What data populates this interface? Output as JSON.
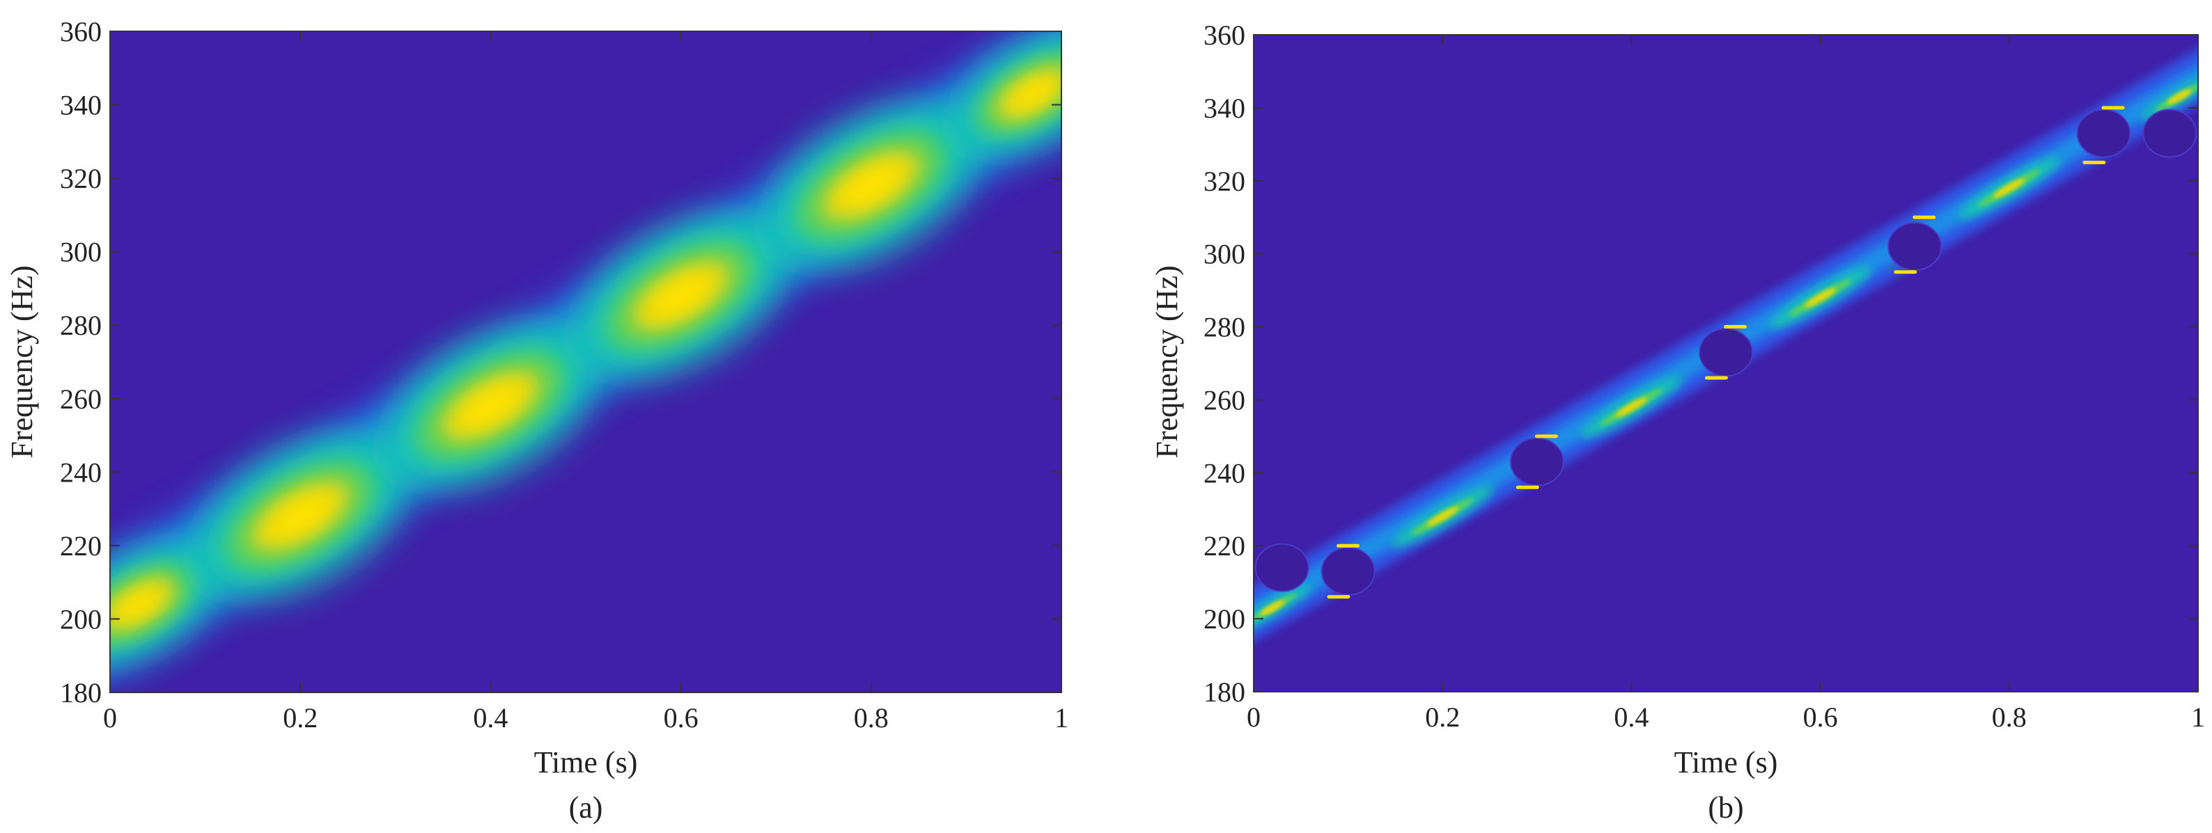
{
  "colors": {
    "background": "#4020a8",
    "axis": "#333333",
    "colormap": [
      "#4020a8",
      "#2f5ff0",
      "#16a6e8",
      "#16c8b0",
      "#58d060",
      "#e8d810",
      "#ffe200"
    ]
  },
  "chart_data": [
    {
      "type": "heatmap",
      "panel_label": "(a)",
      "xlabel": "Time (s)",
      "ylabel": "Frequency (Hz)",
      "xlim": [
        0,
        1
      ],
      "ylim": [
        180,
        360
      ],
      "xticks": [
        0,
        0.2,
        0.4,
        0.6,
        0.8,
        1
      ],
      "xtick_labels": [
        "0",
        "0.2",
        "0.4",
        "0.6",
        "0.8",
        "1"
      ],
      "yticks": [
        180,
        200,
        220,
        240,
        260,
        280,
        300,
        320,
        340,
        360
      ],
      "ytick_labels": [
        "180",
        "200",
        "220",
        "240",
        "260",
        "280",
        "300",
        "320",
        "340",
        "360"
      ],
      "colormap": "parula",
      "ridge": {
        "t": [
          0,
          1
        ],
        "f": [
          200,
          350
        ]
      },
      "blobs": [
        {
          "t": 0.03,
          "f": 204,
          "intensity": 0.75
        },
        {
          "t": 0.2,
          "f": 228,
          "intensity": 1.0
        },
        {
          "t": 0.4,
          "f": 258,
          "intensity": 1.0
        },
        {
          "t": 0.6,
          "f": 288,
          "intensity": 1.0
        },
        {
          "t": 0.8,
          "f": 318,
          "intensity": 1.0
        },
        {
          "t": 0.97,
          "f": 343,
          "intensity": 0.75
        }
      ]
    },
    {
      "type": "heatmap",
      "panel_label": "(b)",
      "xlabel": "Time (s)",
      "ylabel": "Frequency (Hz)",
      "xlim": [
        0,
        1
      ],
      "ylim": [
        180,
        360
      ],
      "xticks": [
        0,
        0.2,
        0.4,
        0.6,
        0.8,
        1
      ],
      "xtick_labels": [
        "0",
        "0.2",
        "0.4",
        "0.6",
        "0.8",
        "1"
      ],
      "yticks": [
        180,
        200,
        220,
        240,
        260,
        280,
        300,
        320,
        340,
        360
      ],
      "ytick_labels": [
        "180",
        "200",
        "220",
        "240",
        "260",
        "280",
        "300",
        "320",
        "340",
        "360"
      ],
      "colormap": "parula",
      "ridge": {
        "t": [
          0,
          1
        ],
        "f": [
          200,
          350
        ]
      },
      "blobs": [
        {
          "t": 0.02,
          "f": 203,
          "intensity": 0.5
        },
        {
          "t": 0.2,
          "f": 228,
          "intensity": 0.65
        },
        {
          "t": 0.4,
          "f": 258,
          "intensity": 0.65
        },
        {
          "t": 0.6,
          "f": 288,
          "intensity": 0.65
        },
        {
          "t": 0.8,
          "f": 318,
          "intensity": 0.65
        },
        {
          "t": 0.98,
          "f": 343,
          "intensity": 0.5
        }
      ],
      "crossings": [
        {
          "t": 0.03,
          "f": 214
        },
        {
          "t": 0.1,
          "f": 213
        },
        {
          "t": 0.3,
          "f": 243
        },
        {
          "t": 0.5,
          "f": 273
        },
        {
          "t": 0.7,
          "f": 302
        },
        {
          "t": 0.9,
          "f": 333
        },
        {
          "t": 0.97,
          "f": 333
        }
      ],
      "edge_marks": [
        {
          "t": 0.1,
          "f": 220
        },
        {
          "t": 0.09,
          "f": 206
        },
        {
          "t": 0.31,
          "f": 250
        },
        {
          "t": 0.29,
          "f": 236
        },
        {
          "t": 0.51,
          "f": 280
        },
        {
          "t": 0.49,
          "f": 266
        },
        {
          "t": 0.71,
          "f": 310
        },
        {
          "t": 0.69,
          "f": 295
        },
        {
          "t": 0.91,
          "f": 340
        },
        {
          "t": 0.89,
          "f": 325
        }
      ]
    }
  ]
}
